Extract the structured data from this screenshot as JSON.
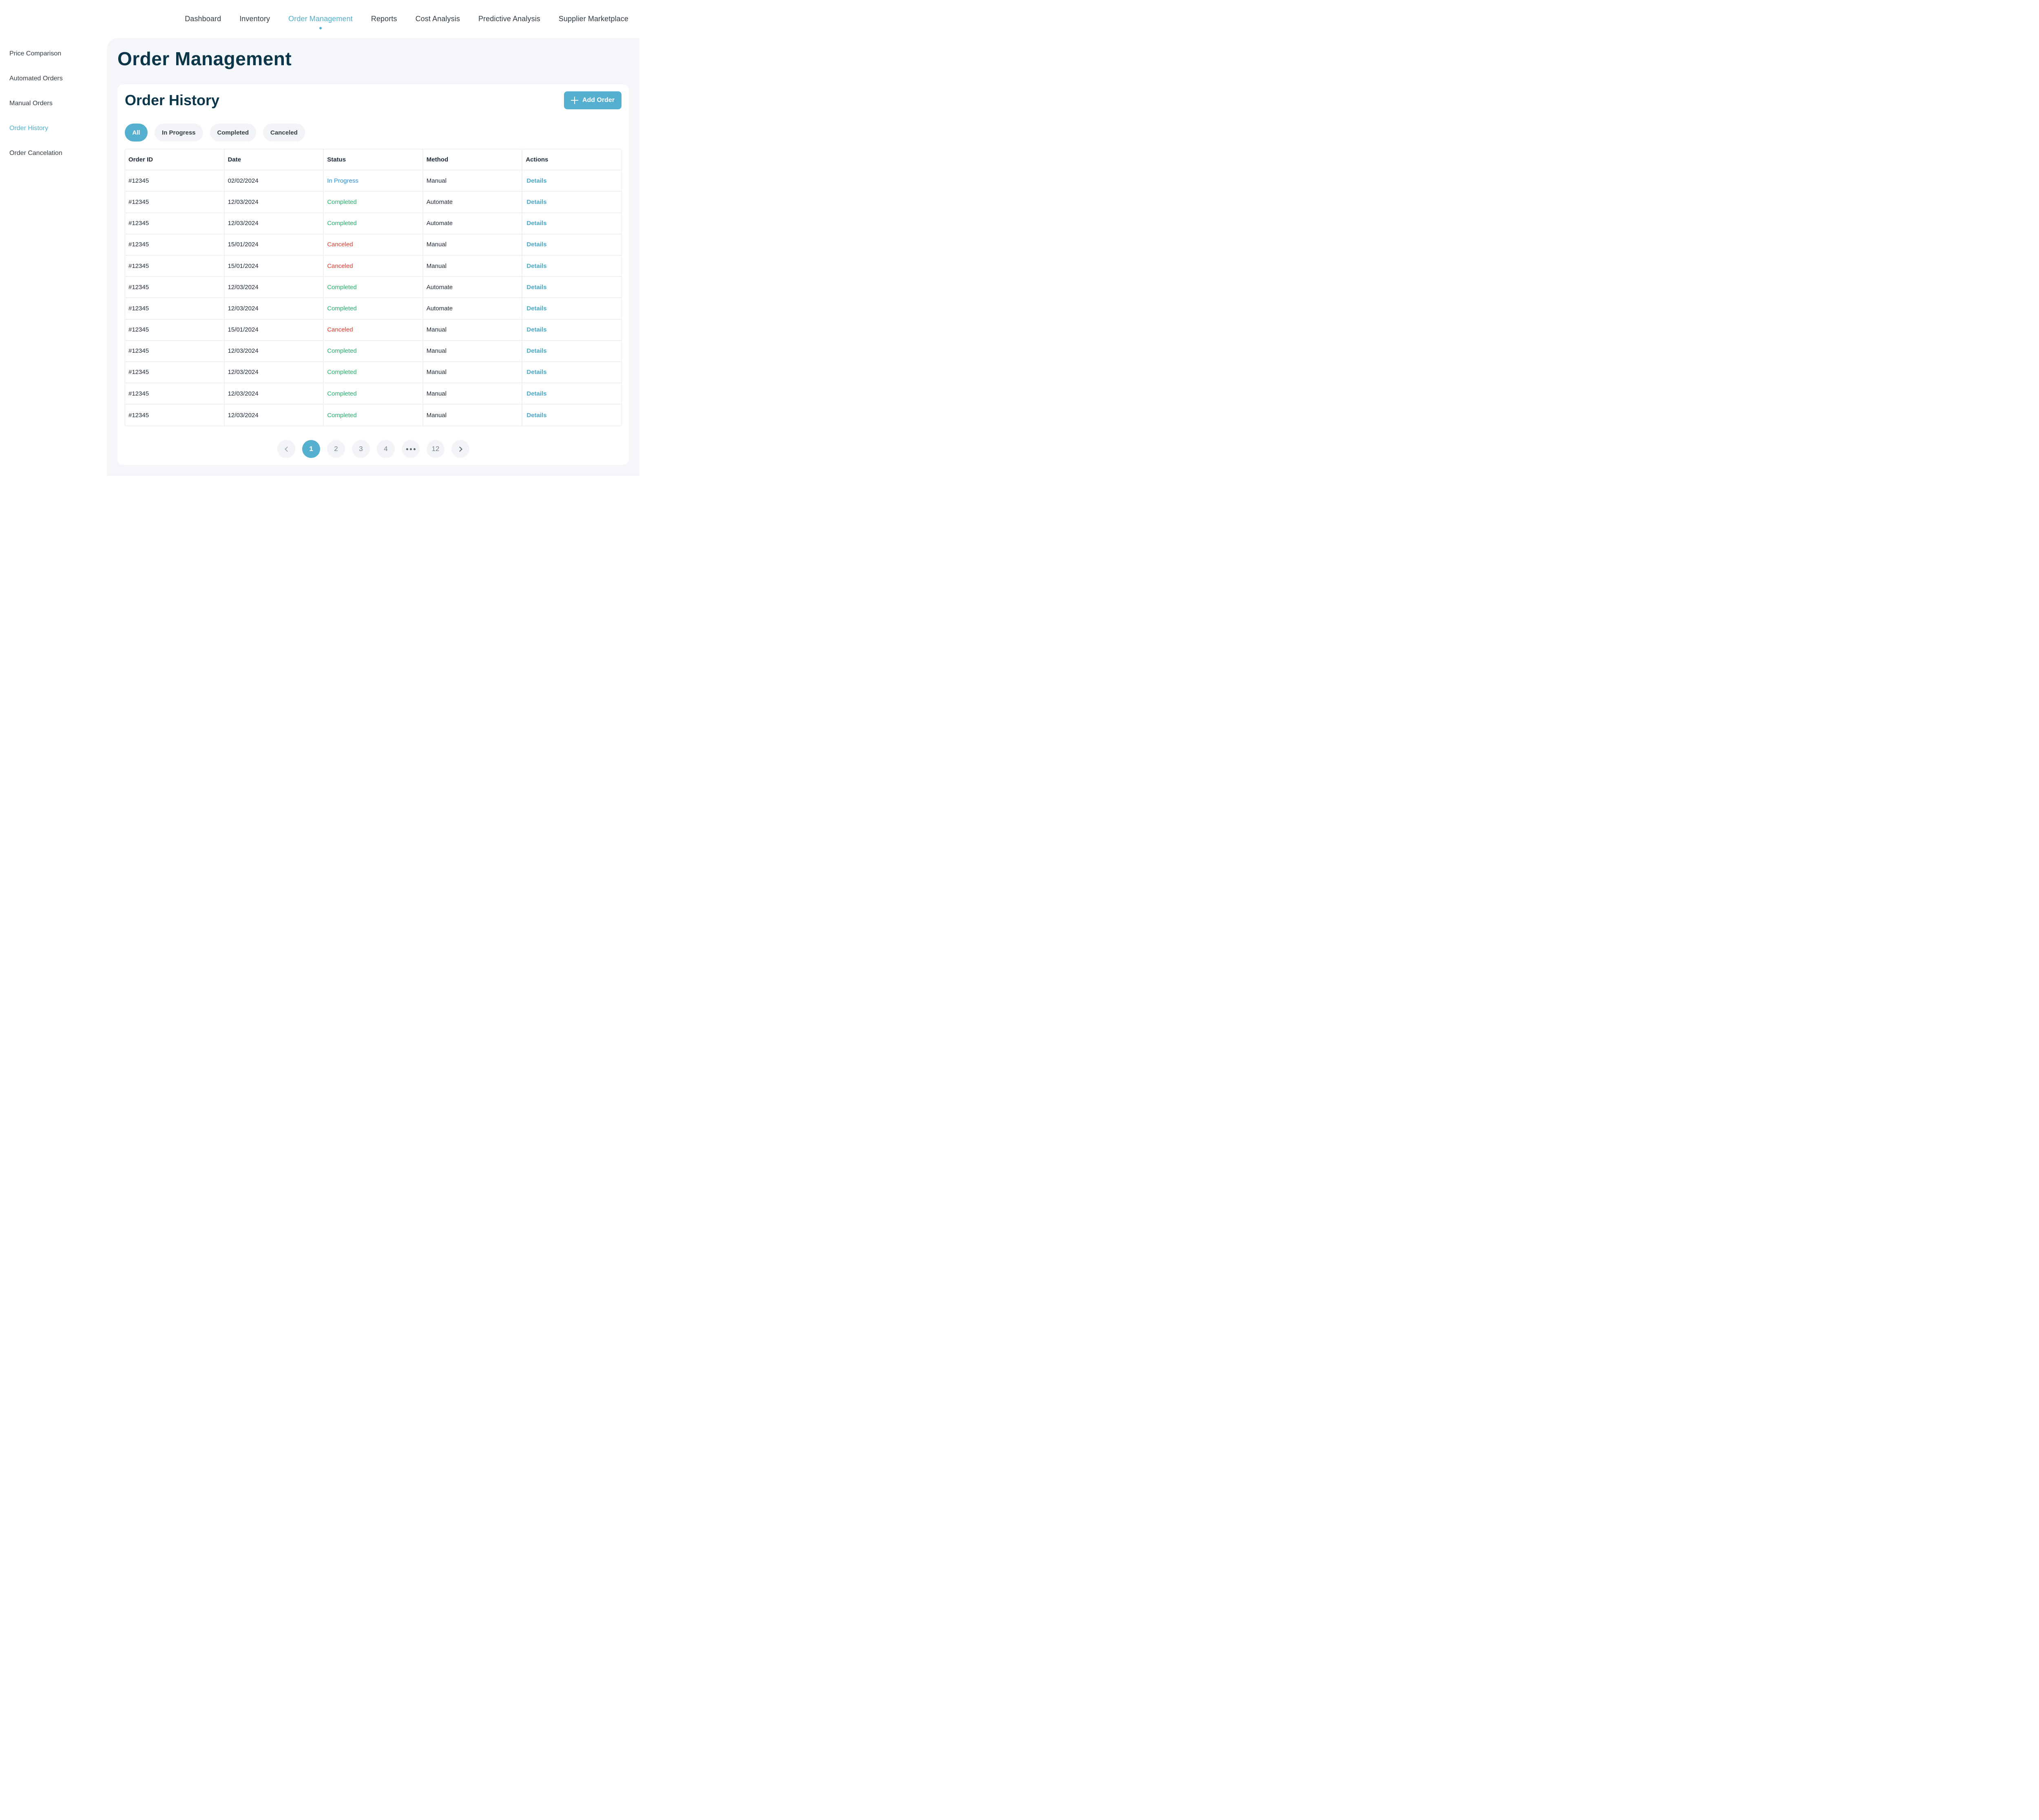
{
  "nav": {
    "items": [
      "Dashboard",
      "Inventory",
      "Order Management",
      "Reports",
      "Cost Analysis",
      "Predictive Analysis",
      "Supplier Marketplace"
    ],
    "active": "Order Management"
  },
  "sidebar": {
    "items": [
      "Price Comparison",
      "Automated Orders",
      "Manual Orders",
      "Order History",
      "Order Cancelation"
    ],
    "active": "Order History"
  },
  "page": {
    "title": "Order Management"
  },
  "card": {
    "title": "Order History",
    "add_button": "Add Order"
  },
  "filters": {
    "items": [
      "All",
      "In Progress",
      "Completed",
      "Canceled"
    ],
    "active": "All"
  },
  "table": {
    "columns": [
      "Order ID",
      "Date",
      "Status",
      "Method",
      "Actions"
    ],
    "rows": [
      [
        "#12345",
        "02/02/2024",
        "In Progress",
        "Manual",
        "Details"
      ],
      [
        "#12345",
        "12/03/2024",
        "Completed",
        "Automate",
        "Details"
      ],
      [
        "#12345",
        "12/03/2024",
        "Completed",
        "Automate",
        "Details"
      ],
      [
        "#12345",
        "15/01/2024",
        "Canceled",
        "Manual",
        "Details"
      ],
      [
        "#12345",
        "15/01/2024",
        "Canceled",
        "Manual",
        "Details"
      ],
      [
        "#12345",
        "12/03/2024",
        "Completed",
        "Automate",
        "Details"
      ],
      [
        "#12345",
        "12/03/2024",
        "Completed",
        "Automate",
        "Details"
      ],
      [
        "#12345",
        "15/01/2024",
        "Canceled",
        "Manual",
        "Details"
      ],
      [
        "#12345",
        "12/03/2024",
        "Completed",
        "Manual",
        "Details"
      ],
      [
        "#12345",
        "12/03/2024",
        "Completed",
        "Manual",
        "Details"
      ],
      [
        "#12345",
        "12/03/2024",
        "Completed",
        "Manual",
        "Details"
      ],
      [
        "#12345",
        "12/03/2024",
        "Completed",
        "Manual",
        "Details"
      ]
    ]
  },
  "pagination": {
    "pages": [
      "1",
      "2",
      "3",
      "4"
    ],
    "last": "12",
    "current": "1"
  },
  "colors": {
    "accent": "#55b0cf",
    "title": "#0b3549",
    "in_progress": "#2b8fd8",
    "completed": "#21b26b",
    "canceled": "#e4392b"
  }
}
